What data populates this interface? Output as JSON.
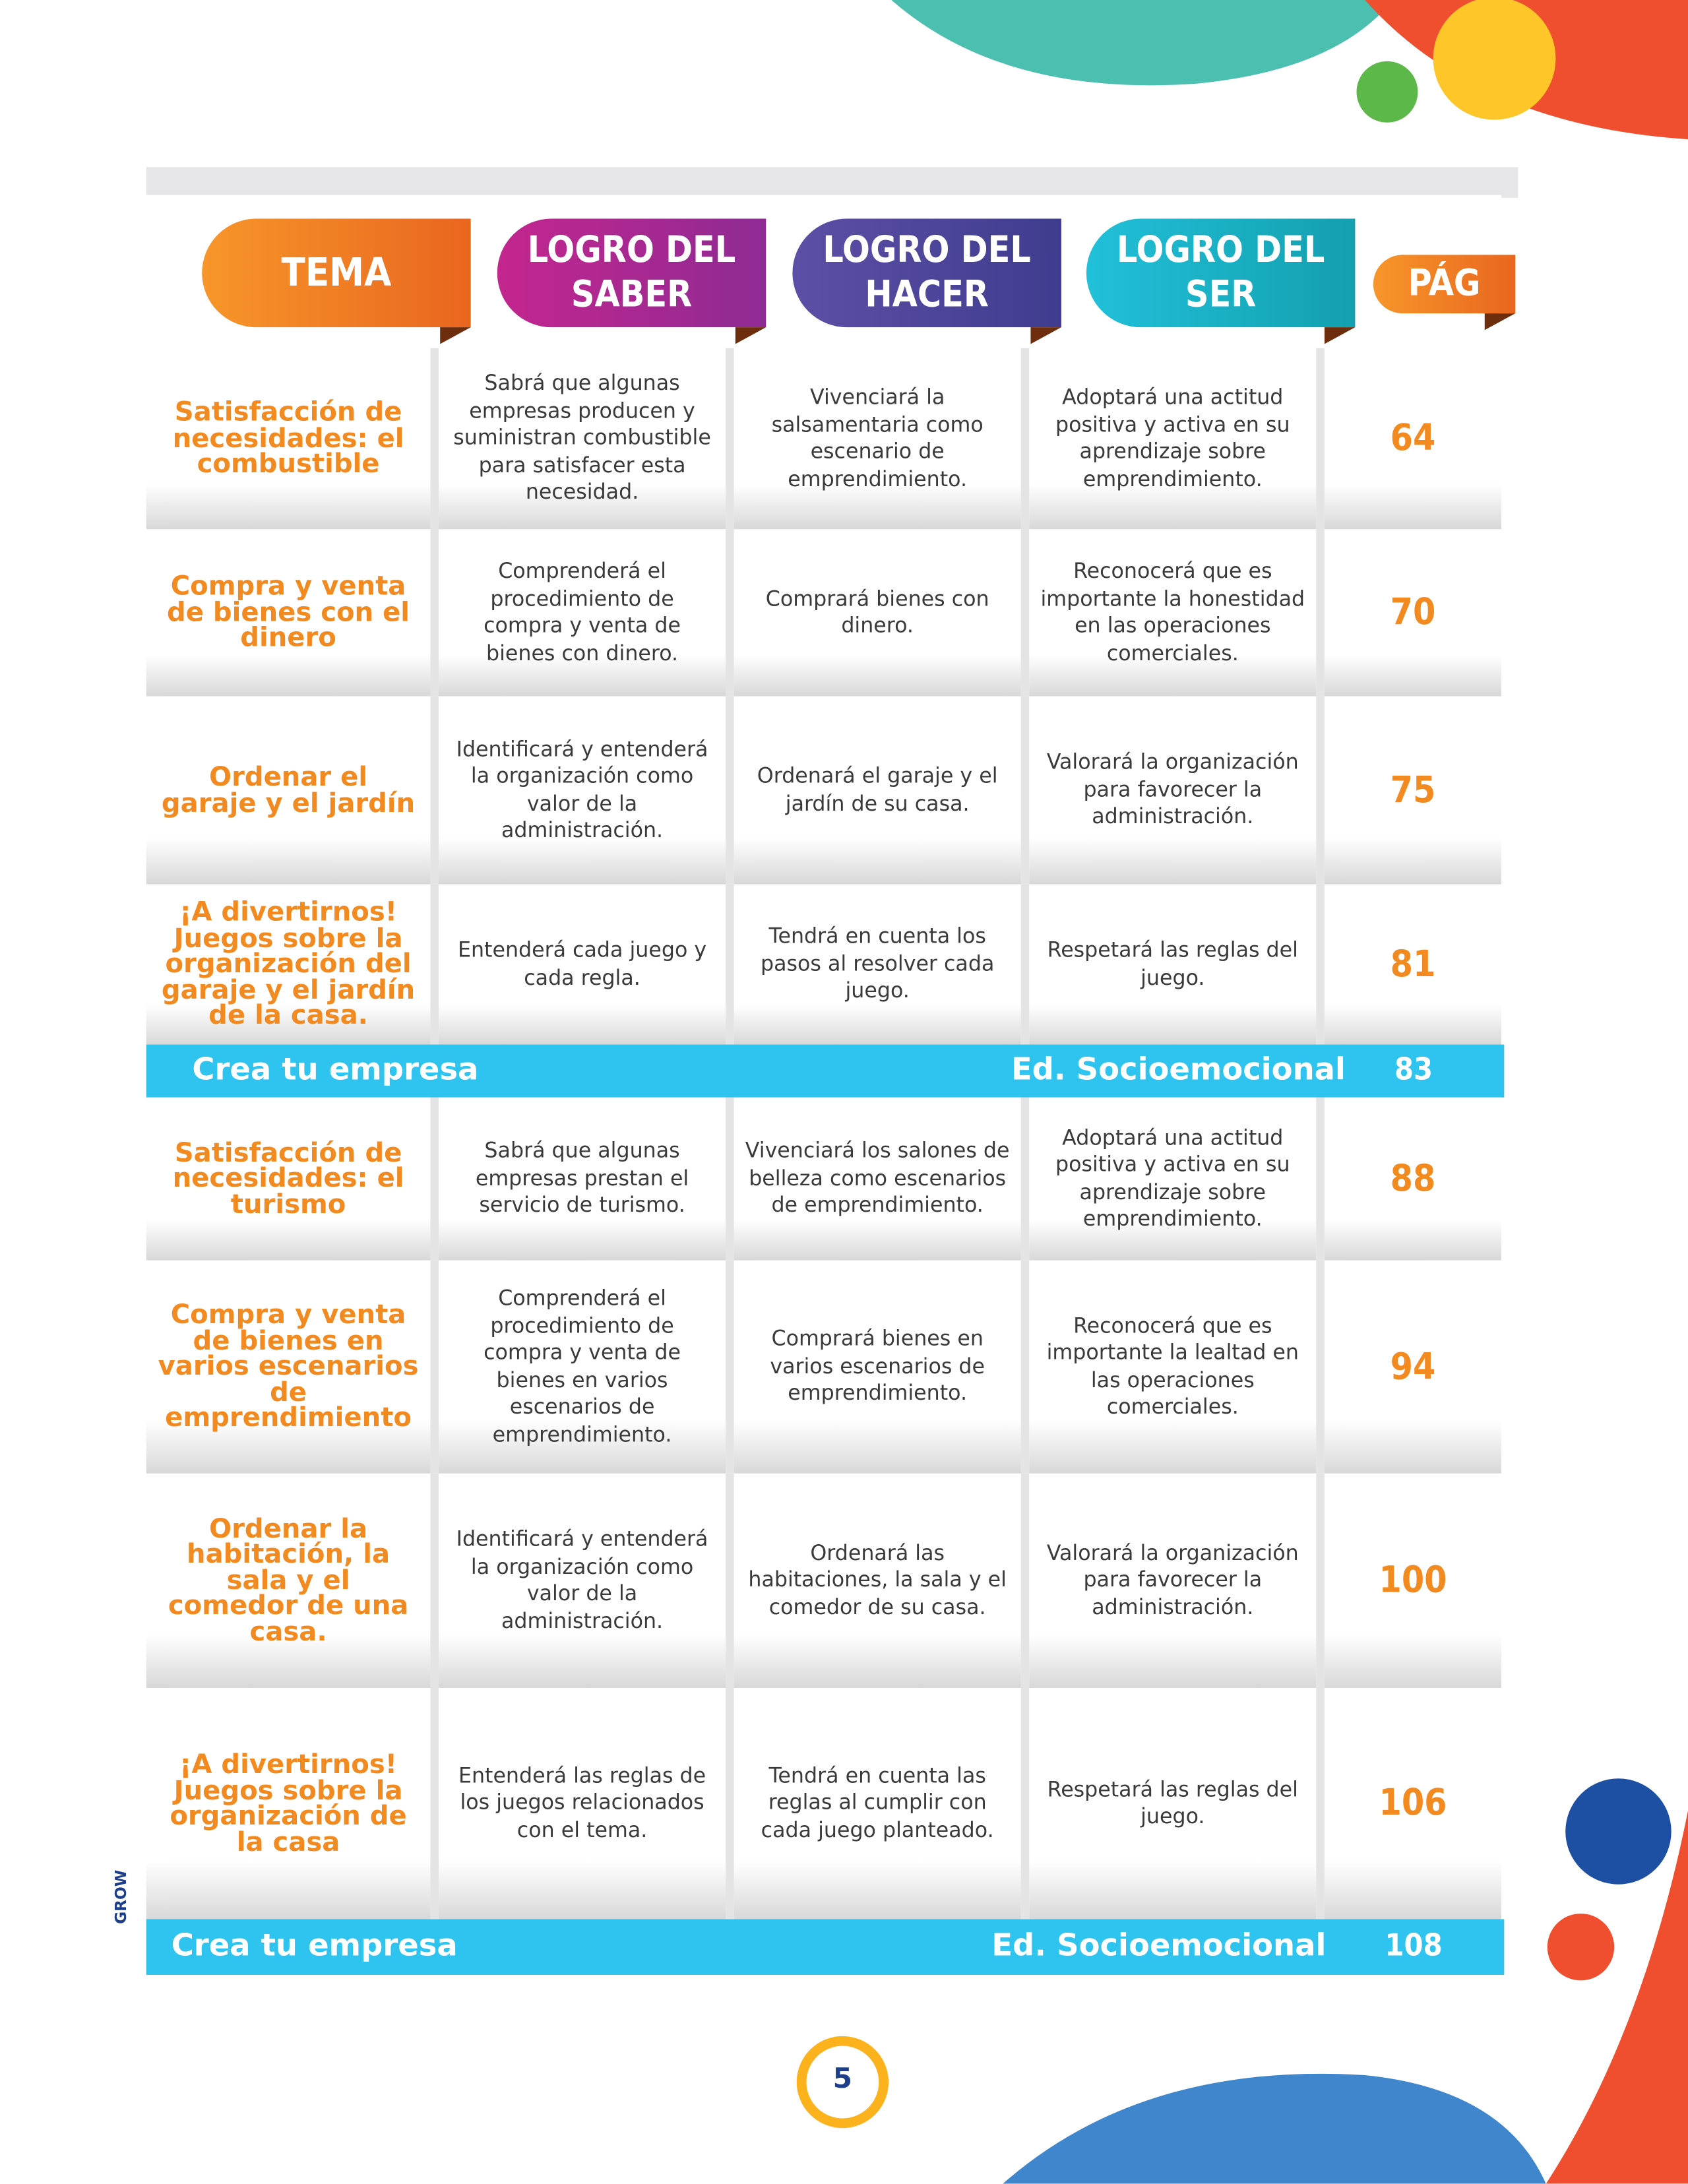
{
  "header": {
    "tema": "TEMA",
    "saber": "LOGRO DEL SABER",
    "hacer": "LOGRO DEL HACER",
    "ser": "LOGRO DEL SER",
    "pag": "PÁG"
  },
  "sections": [
    {
      "rows": [
        {
          "tema": "Satisfacción de necesidades: el combustible",
          "saber": "Sabrá que algunas empresas producen y suministran combustible para satisfacer esta necesidad.",
          "hacer": "Vivenciará la salsamentaria como escenario de emprendimiento.",
          "ser": "Adoptará una actitud positiva y activa en su aprendizaje sobre emprendimiento.",
          "pag": 64
        },
        {
          "tema": "Compra y venta de bienes con el dinero",
          "saber": "Comprenderá el procedimiento de compra y venta de bienes con dinero.",
          "hacer": "Comprará bienes con dinero.",
          "ser": "Reconocerá que es importante la honestidad en las operaciones comerciales.",
          "pag": 70
        },
        {
          "tema": "Ordenar el garaje y el jardín",
          "saber": "Identificará y entenderá la organización como valor de la administración.",
          "hacer": "Ordenará el garaje y el jardín de su casa.",
          "ser": "Valorará la organización para favorecer la administración.",
          "pag": 75
        },
        {
          "tema": "¡A divertirnos! Juegos sobre la organización del garaje y el jardín de la casa.",
          "saber": "Entenderá cada juego y cada regla.",
          "hacer": "Tendrá en cuenta los pasos al resolver cada juego.",
          "ser": "Respetará las reglas del juego.",
          "pag": 81
        }
      ],
      "banner": {
        "left": "Crea tu empresa",
        "right": "Ed. Socioemocional",
        "pag": 83
      }
    },
    {
      "rows": [
        {
          "tema": "Satisfacción de necesidades: el turismo",
          "saber": "Sabrá que algunas empresas prestan el servicio de turismo.",
          "hacer": "Vivenciará los salones de belleza como escenarios de emprendimiento.",
          "ser": "Adoptará una actitud positiva y activa en su aprendizaje sobre emprendimiento.",
          "pag": 88
        },
        {
          "tema": "Compra y venta de bienes en varios escenarios de emprendimiento",
          "saber": "Comprenderá el procedimiento de compra y venta de bienes en varios escenarios de emprendimiento.",
          "hacer": "Comprará bienes en varios escenarios de emprendimiento.",
          "ser": "Reconocerá que es importante la lealtad en las operaciones comerciales.",
          "pag": 94
        },
        {
          "tema": "Ordenar la habitación, la sala y el comedor de una casa.",
          "saber": "Identificará y entenderá la organización como valor de la administración.",
          "hacer": "Ordenará las habitaciones, la sala y el comedor de su casa.",
          "ser": "Valorará la organización para favorecer la administración.",
          "pag": 100
        },
        {
          "tema": "¡A divertirnos! Juegos sobre la organización de la casa",
          "saber": "Entenderá las reglas de los juegos relacionados con el tema.",
          "hacer": "Tendrá en cuenta las reglas al cumplir con cada juego planteado.",
          "ser": "Respetará las reglas del juego.",
          "pag": 106
        }
      ],
      "banner": {
        "left": "Crea tu empresa",
        "right": "Ed. Socioemocional",
        "pag": 108
      }
    }
  ],
  "footer": {
    "page": "5",
    "brand": "GROW"
  }
}
